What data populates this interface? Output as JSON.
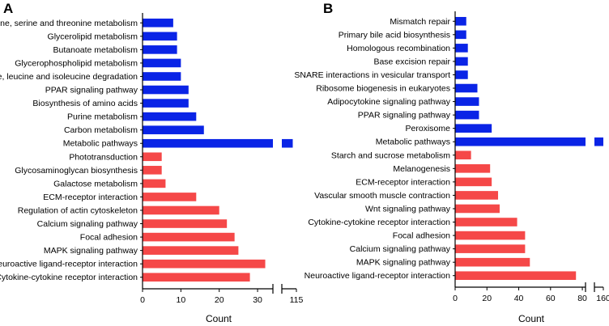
{
  "chart_data": [
    {
      "panel_label": "A",
      "type": "bar",
      "orientation": "horizontal",
      "xlabel": "Count",
      "ylabel": "",
      "xlim": [
        0,
        115
      ],
      "axis_break": {
        "from": 34,
        "to": 111
      },
      "x_ticks": [
        0,
        10,
        20,
        30,
        115
      ],
      "colors": {
        "up": "#0a24e6",
        "down": "#f54848"
      },
      "categories": [
        "Glycine, serine and threonine metabolism",
        "Glycerolipid metabolism",
        "Butanoate metabolism",
        "Glycerophospholipid metabolism",
        "Valine, leucine and isoleucine degradation",
        "PPAR signaling pathway",
        "Biosynthesis of amino acids",
        "Purine metabolism",
        "Carbon metabolism",
        "Metabolic pathways",
        "Phototransduction",
        "Glycosaminoglycan biosynthesis",
        "Galactose metabolism",
        "ECM-receptor interaction",
        "Regulation of actin cytoskeleton",
        "Calcium signaling pathway",
        "Focal adhesion",
        "MAPK signaling pathway",
        "Neuroactive ligand-receptor interaction",
        "Cytokine-cytokine receptor interaction"
      ],
      "values": [
        8,
        9,
        9,
        10,
        10,
        12,
        12,
        14,
        16,
        114,
        5,
        5,
        6,
        14,
        20,
        22,
        24,
        25,
        32,
        28
      ],
      "groups": [
        "up",
        "up",
        "up",
        "up",
        "up",
        "up",
        "up",
        "up",
        "up",
        "up",
        "down",
        "down",
        "down",
        "down",
        "down",
        "down",
        "down",
        "down",
        "down",
        "down"
      ]
    },
    {
      "panel_label": "B",
      "type": "bar",
      "orientation": "horizontal",
      "xlabel": "Count",
      "ylabel": "",
      "xlim": [
        0,
        160
      ],
      "axis_break": {
        "from": 82,
        "to": 156
      },
      "x_ticks": [
        0,
        20,
        40,
        60,
        80,
        160
      ],
      "colors": {
        "up": "#0a24e6",
        "down": "#f54848"
      },
      "categories": [
        "Mismatch repair",
        "Primary bile acid biosynthesis",
        "Homologous recombination",
        "Base excision repair",
        "SNARE interactions in vesicular transport",
        "Ribosome biogenesis in eukaryotes",
        "Adipocytokine signaling pathway",
        "PPAR signaling pathway",
        "Peroxisome",
        "Metabolic pathways",
        "Starch and sucrose metabolism",
        "Melanogenesis",
        "ECM-receptor interaction",
        "Vascular smooth muscle contraction",
        "Wnt signaling pathway",
        "Cytokine-cytokine receptor interaction",
        "Focal adhesion",
        "Calcium signaling pathway",
        "MAPK signaling pathway",
        "Neuroactive ligand-receptor interaction"
      ],
      "values": [
        7,
        7,
        8,
        8,
        8,
        14,
        15,
        15,
        23,
        160,
        10,
        22,
        23,
        27,
        28,
        39,
        44,
        44,
        47,
        76
      ],
      "groups": [
        "up",
        "up",
        "up",
        "up",
        "up",
        "up",
        "up",
        "up",
        "up",
        "up",
        "down",
        "down",
        "down",
        "down",
        "down",
        "down",
        "down",
        "down",
        "down",
        "down"
      ]
    }
  ]
}
